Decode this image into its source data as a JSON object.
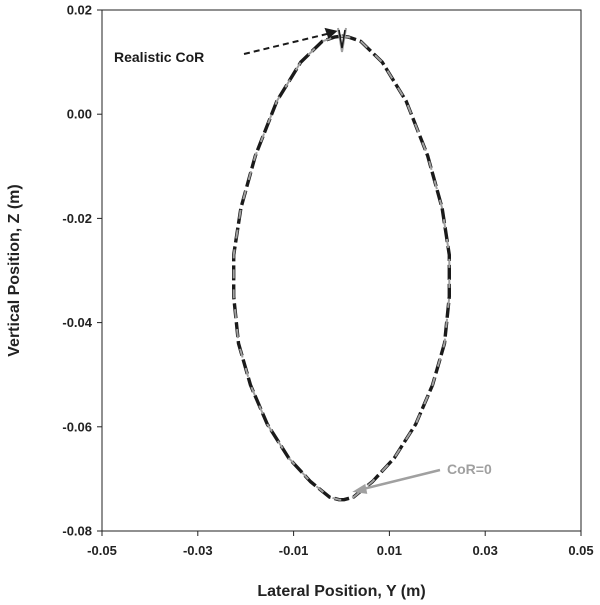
{
  "chart_data": {
    "type": "line",
    "title": "",
    "xlabel": "Lateral Position, Y (m)",
    "ylabel": "Vertical Position, Z (m)",
    "xlim": [
      -0.05,
      0.05
    ],
    "ylim": [
      -0.08,
      0.02
    ],
    "xticks": [
      -0.05,
      -0.03,
      -0.01,
      0.01,
      0.03,
      0.05
    ],
    "xtick_labels": [
      "-0.05",
      "-0.03",
      "-0.01",
      "0.01",
      "0.03",
      "0.05"
    ],
    "yticks": [
      0.02,
      0.0,
      -0.02,
      -0.04,
      -0.06,
      -0.08
    ],
    "ytick_labels": [
      "0.02",
      "0.00",
      "-0.02",
      "-0.04",
      "-0.06",
      "-0.08"
    ],
    "grid": false,
    "colors": {
      "realistic": "#1a1a1a",
      "cor0": "#a0a0a0"
    },
    "series": [
      {
        "name": "Realistic CoR",
        "style": "dashed",
        "x": [
          0.0,
          0.0015,
          0.004,
          0.0085,
          0.0135,
          0.018,
          0.021,
          0.0225,
          0.0225,
          0.0215,
          0.019,
          0.0155,
          0.011,
          0.0065,
          0.0025,
          0.0005,
          0.0,
          -0.0005,
          -0.0025,
          -0.0065,
          -0.011,
          -0.0155,
          -0.019,
          -0.0215,
          -0.0225,
          -0.0225,
          -0.021,
          -0.018,
          -0.0135,
          -0.0085,
          -0.004,
          -0.0015,
          0.0
        ],
        "y": [
          0.015,
          0.0148,
          0.014,
          0.01,
          0.0025,
          -0.008,
          -0.018,
          -0.027,
          -0.035,
          -0.044,
          -0.052,
          -0.0595,
          -0.066,
          -0.0705,
          -0.0735,
          -0.074,
          -0.074,
          -0.074,
          -0.0735,
          -0.0705,
          -0.066,
          -0.0595,
          -0.052,
          -0.044,
          -0.035,
          -0.027,
          -0.018,
          -0.008,
          0.0025,
          0.01,
          0.014,
          0.0148,
          0.015
        ]
      },
      {
        "name": "CoR=0",
        "style": "dashed",
        "x": [
          0.0,
          0.0015,
          0.004,
          0.0085,
          0.0135,
          0.018,
          0.021,
          0.0225,
          0.0225,
          0.0215,
          0.019,
          0.0155,
          0.011,
          0.0065,
          0.0025,
          0.0005,
          0.0,
          -0.0005,
          -0.0025,
          -0.0065,
          -0.011,
          -0.0155,
          -0.019,
          -0.0215,
          -0.0225,
          -0.0225,
          -0.021,
          -0.018,
          -0.0135,
          -0.0085,
          -0.004,
          -0.0015,
          0.0
        ],
        "y": [
          0.015,
          0.0148,
          0.014,
          0.01,
          0.0025,
          -0.008,
          -0.018,
          -0.027,
          -0.035,
          -0.044,
          -0.052,
          -0.0595,
          -0.066,
          -0.0705,
          -0.0735,
          -0.074,
          -0.074,
          -0.074,
          -0.0735,
          -0.0705,
          -0.066,
          -0.0595,
          -0.052,
          -0.044,
          -0.035,
          -0.027,
          -0.018,
          -0.008,
          0.0025,
          0.01,
          0.014,
          0.0148,
          0.015
        ]
      }
    ],
    "annotations": [
      {
        "text": "Realistic CoR",
        "color": "#1a1a1a",
        "arrow_style": "dashed",
        "points_to": {
          "x": 0.0,
          "y": 0.016
        }
      },
      {
        "text": "CoR=0",
        "color": "#a0a0a0",
        "arrow_style": "solid",
        "points_to": {
          "x": 0.001,
          "y": -0.0725
        }
      }
    ]
  }
}
